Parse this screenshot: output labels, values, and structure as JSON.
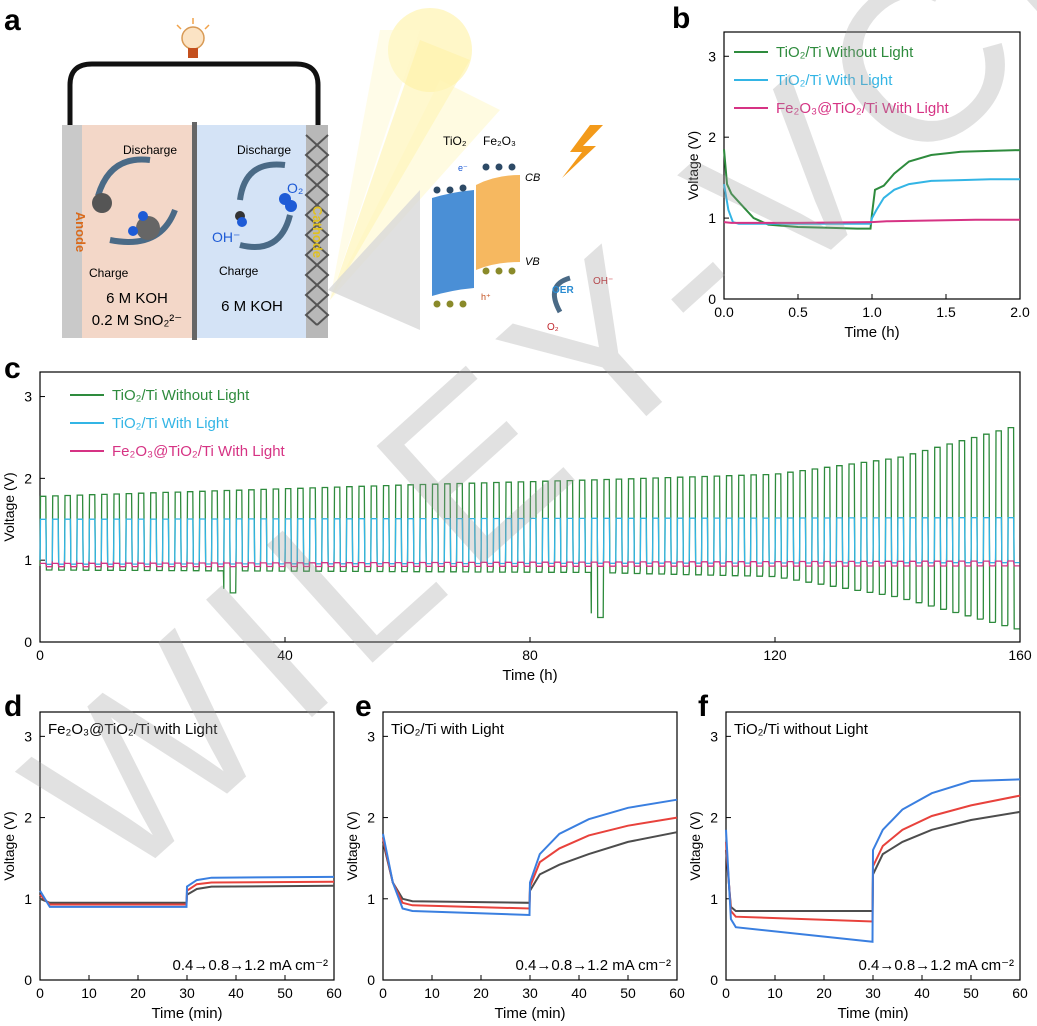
{
  "panel_letters": {
    "a": "a",
    "b": "b",
    "c": "c",
    "d": "d",
    "e": "e",
    "f": "f"
  },
  "watermark": "WILEY-VCH",
  "schematic": {
    "anode_label": "Anode",
    "cathode_label": "Cathode",
    "discharge_left": "Discharge",
    "charge_left": "Charge",
    "discharge_right": "Discharge",
    "charge_right": "Charge",
    "ion_oh": "OH⁻",
    "gas_o2": "O₂",
    "electrolyte_left_1": "6 M KOH",
    "electrolyte_left_2": "0.2 M SnO₂²⁻",
    "electrolyte_right": "6 M KOH",
    "tio2": "TiO₂",
    "fe2o3": "Fe₂O₃",
    "cb": "CB",
    "vb": "VB",
    "electron": "e⁻",
    "hole": "h⁺",
    "oer": "OER",
    "oh_product": "OH⁻",
    "o2_product": "O₂"
  },
  "colors": {
    "green": "#2e8b3d",
    "cyan": "#33b5e5",
    "magenta": "#d63384",
    "gray": "#4d4d4d",
    "red": "#e8423c",
    "blue": "#3a7fe0",
    "anode_bg": "#f3d7c8",
    "cathode_bg": "#d4e3f6"
  },
  "chart_data": [
    {
      "id": "b",
      "type": "line",
      "xlabel": "Time (h)",
      "ylabel": "Voltage (V)",
      "xlim": [
        0,
        2.0
      ],
      "ylim": [
        0,
        3.3
      ],
      "xticks": [
        "0.0",
        "0.5",
        "1.0",
        "1.5",
        "2.0"
      ],
      "yticks": [
        "0",
        "1",
        "2",
        "3"
      ],
      "legend": [
        "TiO₂/Ti Without Light",
        "TiO₂/Ti With Light",
        "Fe₂O₃@TiO₂/Ti With Light"
      ],
      "series": [
        {
          "name": "TiO₂/Ti Without Light",
          "color": "green",
          "x": [
            0,
            0.02,
            0.05,
            0.1,
            0.2,
            0.3,
            0.5,
            0.7,
            0.9,
            0.99,
            1.0,
            1.02,
            1.08,
            1.15,
            1.25,
            1.4,
            1.6,
            1.8,
            2.0
          ],
          "y": [
            1.85,
            1.42,
            1.3,
            1.2,
            1.0,
            0.92,
            0.89,
            0.88,
            0.87,
            0.87,
            1.05,
            1.35,
            1.4,
            1.55,
            1.7,
            1.78,
            1.82,
            1.83,
            1.84
          ]
        },
        {
          "name": "TiO₂/Ti With Light",
          "color": "cyan",
          "x": [
            0,
            0.03,
            0.06,
            0.1,
            0.3,
            0.5,
            0.7,
            0.9,
            0.99,
            1.0,
            1.03,
            1.08,
            1.15,
            1.25,
            1.4,
            1.6,
            1.8,
            2.0
          ],
          "y": [
            1.42,
            1.1,
            0.95,
            0.93,
            0.93,
            0.93,
            0.93,
            0.93,
            0.93,
            1.0,
            1.1,
            1.25,
            1.35,
            1.42,
            1.46,
            1.47,
            1.48,
            1.48
          ]
        },
        {
          "name": "Fe₂O₃@TiO₂/Ti With Light",
          "color": "magenta",
          "x": [
            0,
            0.05,
            0.5,
            0.99,
            1.0,
            1.1,
            1.4,
            1.7,
            2.0
          ],
          "y": [
            0.95,
            0.94,
            0.94,
            0.95,
            0.95,
            0.96,
            0.97,
            0.98,
            0.98
          ]
        }
      ]
    },
    {
      "id": "c",
      "type": "line",
      "xlabel": "Time (h)",
      "ylabel": "Voltage (V)",
      "xlim": [
        0,
        160
      ],
      "ylim": [
        0,
        3.3
      ],
      "xticks": [
        "0",
        "40",
        "80",
        "120",
        "160"
      ],
      "yticks": [
        "0",
        "1",
        "2",
        "3"
      ],
      "legend": [
        "TiO₂/Ti Without Light",
        "TiO₂/Ti With Light",
        "Fe₂O₃@TiO₂/Ti With Light"
      ],
      "cycle_period_h": 2,
      "series": [
        {
          "name": "TiO₂/Ti Without Light",
          "color": "green",
          "charge_x": [
            0,
            30,
            60,
            90,
            120,
            140,
            160
          ],
          "charge_y": [
            1.78,
            1.85,
            1.92,
            1.98,
            2.05,
            2.25,
            2.65
          ],
          "discharge_x": [
            0,
            30,
            60,
            90,
            120,
            140,
            160
          ],
          "discharge_y": [
            0.88,
            0.87,
            0.86,
            0.85,
            0.8,
            0.55,
            0.15
          ],
          "dips": [
            [
              31,
              0.6
            ],
            [
              91,
              0.3
            ]
          ]
        },
        {
          "name": "TiO₂/Ti With Light",
          "color": "cyan",
          "charge_x": [
            0,
            160
          ],
          "charge_y": [
            1.5,
            1.52
          ],
          "discharge_x": [
            0,
            160
          ],
          "discharge_y": [
            0.95,
            0.97
          ]
        },
        {
          "name": "Fe₂O₃@TiO₂/Ti With Light",
          "color": "magenta",
          "charge_x": [
            0,
            160
          ],
          "charge_y": [
            0.96,
            0.99
          ],
          "discharge_x": [
            0,
            160
          ],
          "discharge_y": [
            0.92,
            0.93
          ]
        }
      ]
    },
    {
      "id": "d",
      "type": "line",
      "title": "Fe₂O₃@TiO₂/Ti with Light",
      "annotation": "0.4→0.8→1.2 mA cm⁻²",
      "xlabel": "Time (min)",
      "ylabel": "Voltage (V)",
      "xlim": [
        0,
        60
      ],
      "ylim": [
        0,
        3.3
      ],
      "xticks": [
        "0",
        "10",
        "20",
        "30",
        "40",
        "50",
        "60"
      ],
      "yticks": [
        "0",
        "1",
        "2",
        "3"
      ],
      "series": [
        {
          "name": "0.4 mA cm⁻²",
          "color": "gray",
          "x": [
            0,
            2,
            29.9,
            30,
            32,
            35,
            60
          ],
          "y": [
            1.0,
            0.95,
            0.95,
            1.05,
            1.12,
            1.15,
            1.16
          ]
        },
        {
          "name": "0.8 mA cm⁻²",
          "color": "red",
          "x": [
            0,
            2,
            29.9,
            30,
            32,
            35,
            60
          ],
          "y": [
            1.05,
            0.93,
            0.93,
            1.1,
            1.18,
            1.2,
            1.21
          ]
        },
        {
          "name": "1.2 mA cm⁻²",
          "color": "blue",
          "x": [
            0,
            2,
            29.9,
            30,
            32,
            35,
            60
          ],
          "y": [
            1.1,
            0.9,
            0.9,
            1.15,
            1.23,
            1.26,
            1.27
          ]
        }
      ]
    },
    {
      "id": "e",
      "type": "line",
      "title": "TiO₂/Ti with Light",
      "annotation": "0.4→0.8→1.2 mA cm⁻²",
      "xlabel": "Time (min)",
      "ylabel": "Voltage (V)",
      "xlim": [
        0,
        60
      ],
      "ylim": [
        0,
        3.3
      ],
      "xticks": [
        "0",
        "10",
        "20",
        "30",
        "40",
        "50",
        "60"
      ],
      "yticks": [
        "0",
        "1",
        "2",
        "3"
      ],
      "series": [
        {
          "name": "0.4 mA cm⁻²",
          "color": "gray",
          "x": [
            0,
            2,
            4,
            6,
            29.9,
            30,
            32,
            36,
            42,
            50,
            60
          ],
          "y": [
            1.7,
            1.2,
            1.0,
            0.97,
            0.95,
            1.1,
            1.3,
            1.42,
            1.55,
            1.7,
            1.82
          ]
        },
        {
          "name": "0.8 mA cm⁻²",
          "color": "red",
          "x": [
            0,
            2,
            4,
            6,
            29.9,
            30,
            32,
            36,
            42,
            50,
            60
          ],
          "y": [
            1.75,
            1.2,
            0.95,
            0.92,
            0.88,
            1.15,
            1.45,
            1.62,
            1.78,
            1.9,
            2.0
          ]
        },
        {
          "name": "1.2 mA cm⁻²",
          "color": "blue",
          "x": [
            0,
            2,
            4,
            6,
            29.9,
            30,
            32,
            36,
            42,
            50,
            60
          ],
          "y": [
            1.8,
            1.2,
            0.88,
            0.85,
            0.8,
            1.2,
            1.55,
            1.8,
            1.98,
            2.12,
            2.22
          ]
        }
      ]
    },
    {
      "id": "f",
      "type": "line",
      "title": "TiO₂/Ti without Light",
      "annotation": "0.4→0.8→1.2 mA cm⁻²",
      "xlabel": "Time (min)",
      "ylabel": "Voltage (V)",
      "xlim": [
        0,
        60
      ],
      "ylim": [
        0,
        3.3
      ],
      "xticks": [
        "0",
        "10",
        "20",
        "30",
        "40",
        "50",
        "60"
      ],
      "yticks": [
        "0",
        "1",
        "2",
        "3"
      ],
      "series": [
        {
          "name": "0.4 mA cm⁻²",
          "color": "gray",
          "x": [
            0,
            1,
            2,
            29.9,
            30,
            32,
            36,
            42,
            50,
            60
          ],
          "y": [
            1.6,
            0.9,
            0.85,
            0.85,
            1.3,
            1.55,
            1.7,
            1.85,
            1.97,
            2.07
          ]
        },
        {
          "name": "0.8 mA cm⁻²",
          "color": "red",
          "x": [
            0,
            1,
            2,
            29.9,
            30,
            32,
            36,
            42,
            50,
            60
          ],
          "y": [
            1.7,
            0.85,
            0.78,
            0.72,
            1.4,
            1.65,
            1.85,
            2.02,
            2.15,
            2.27
          ]
        },
        {
          "name": "1.2 mA cm⁻²",
          "color": "blue",
          "x": [
            0,
            1,
            2,
            29.9,
            30,
            32,
            36,
            42,
            50,
            60
          ],
          "y": [
            1.85,
            0.75,
            0.65,
            0.47,
            1.6,
            1.85,
            2.1,
            2.3,
            2.45,
            2.47
          ]
        }
      ]
    }
  ]
}
